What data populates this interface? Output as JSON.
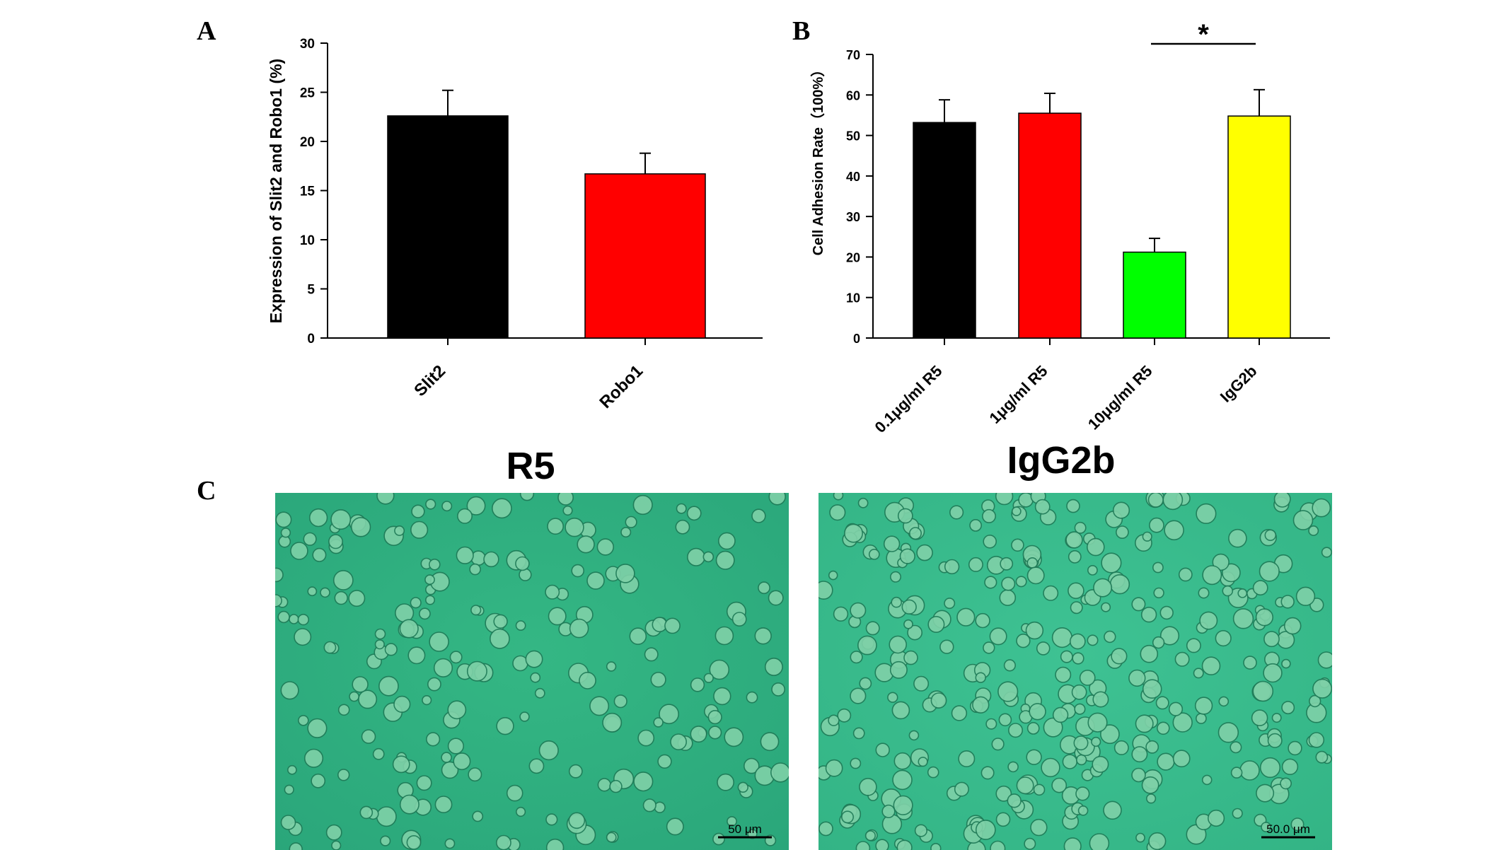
{
  "panels": {
    "a_letter": "A",
    "b_letter": "B",
    "c_letter": "C"
  },
  "chart_data": [
    {
      "type": "bar",
      "panel": "A",
      "title": "",
      "categories": [
        "Slit2",
        "Robo1"
      ],
      "values": [
        22.6,
        16.7
      ],
      "errors": [
        2.6,
        2.1
      ],
      "colors": [
        "#000000",
        "#ff0000"
      ],
      "ylabel": "Expression of Slit2 and Robo1 (%)",
      "xlabel": "",
      "ylim": [
        0,
        30
      ],
      "yticks": [
        0,
        5,
        10,
        15,
        20,
        25,
        30
      ],
      "grid": false
    },
    {
      "type": "bar",
      "panel": "B",
      "title": "",
      "categories": [
        "0.1μg/ml R5",
        "1μg/ml R5",
        "10μg/ml R5",
        "IgG2b"
      ],
      "values": [
        53.2,
        55.5,
        21.2,
        54.8
      ],
      "errors": [
        5.6,
        4.9,
        3.4,
        6.5
      ],
      "colors": [
        "#000000",
        "#ff0000",
        "#00ff00",
        "#ffff00"
      ],
      "ylabel": "Cell Adhesion Rate（100%）",
      "xlabel": "",
      "ylim": [
        0,
        70
      ],
      "yticks": [
        0,
        10,
        20,
        30,
        40,
        50,
        60,
        70
      ],
      "grid": false,
      "significance": {
        "from": "10μg/ml R5",
        "to": "IgG2b",
        "label": "*"
      }
    }
  ],
  "micrographs": [
    {
      "title": "R5",
      "scale_bar": "50 μm",
      "tint": "#2aa67a"
    },
    {
      "title": "IgG2b",
      "scale_bar": "50.0 μm",
      "tint": "#33b485"
    }
  ]
}
